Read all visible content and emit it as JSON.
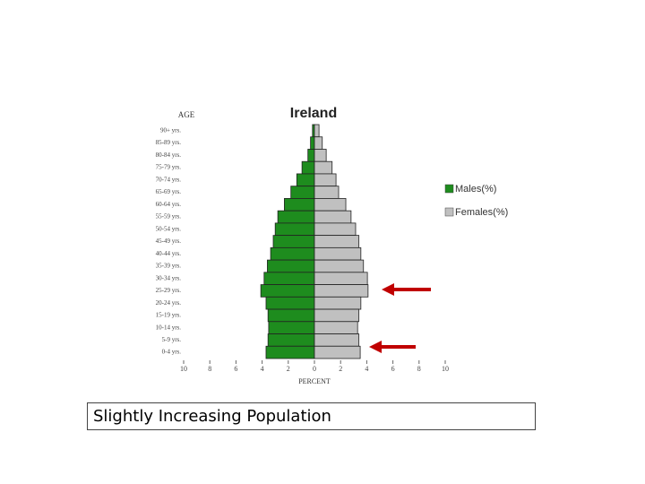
{
  "chart_data": {
    "type": "pyramid",
    "title": "Ireland",
    "y_label": "AGE",
    "x_label": "PERCENT",
    "categories": [
      "90+ yrs.",
      "85-89 yrs.",
      "80-84 yrs.",
      "75-79 yrs.",
      "70-74 yrs.",
      "65-69 yrs.",
      "60-64 yrs.",
      "55-59 yrs.",
      "50-54 yrs.",
      "45-49 yrs.",
      "40-44 yrs.",
      "35-39 yrs.",
      "30-34 yrs.",
      "25-29 yrs.",
      "20-24 yrs.",
      "15-19 yrs.",
      "10-14 yrs.",
      "5-9 yrs.",
      "0-4 yrs."
    ],
    "series": [
      {
        "name": "Males(%)",
        "color": "#1e8c1e",
        "side": "left",
        "values": [
          0.15,
          0.3,
          0.5,
          0.95,
          1.35,
          1.8,
          2.3,
          2.8,
          3.0,
          3.15,
          3.35,
          3.6,
          3.85,
          4.1,
          3.7,
          3.55,
          3.5,
          3.55,
          3.7
        ]
      },
      {
        "name": "Females(%)",
        "color": "#c0c0c0",
        "side": "right",
        "values": [
          0.35,
          0.6,
          0.9,
          1.35,
          1.65,
          1.85,
          2.4,
          2.8,
          3.15,
          3.4,
          3.55,
          3.75,
          4.05,
          4.1,
          3.55,
          3.4,
          3.3,
          3.4,
          3.5
        ]
      }
    ],
    "xlim": [
      -10,
      10
    ],
    "xticks": [
      {
        "value": -10,
        "label": "10"
      },
      {
        "value": -8,
        "label": "8"
      },
      {
        "value": -6,
        "label": "6"
      },
      {
        "value": -4,
        "label": "4"
      },
      {
        "value": -2,
        "label": "2"
      },
      0,
      2,
      4,
      6,
      8,
      10
    ]
  },
  "caption": "Slightly Increasing Population"
}
